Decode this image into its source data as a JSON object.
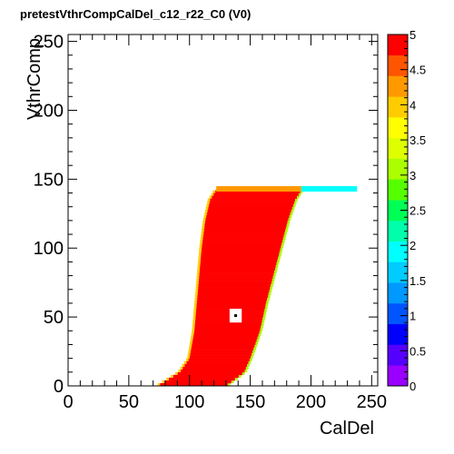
{
  "chart_data": {
    "type": "heatmap",
    "title": "pretestVthrCompCalDel_c12_r22_C0 (V0)",
    "xlabel": "CalDel",
    "ylabel": "VthrComp",
    "xlim": [
      0,
      255
    ],
    "ylim": [
      0,
      255
    ],
    "x_ticks": [
      0,
      50,
      100,
      150,
      200,
      250
    ],
    "y_ticks": [
      0,
      50,
      100,
      150,
      200,
      250
    ],
    "x_tick_labels": [
      "0",
      "50",
      "100",
      "150",
      "200",
      "250"
    ],
    "y_tick_labels": [
      "0",
      "50",
      "100",
      "150",
      "200",
      "250"
    ],
    "z_range": [
      0,
      5
    ],
    "z_ticks": [
      0,
      0.5,
      1,
      1.5,
      2,
      2.5,
      3,
      3.5,
      4,
      4.5,
      5
    ],
    "z_tick_labels": [
      "0",
      "0.5",
      "1",
      "1.5",
      "2",
      "2.5",
      "3",
      "3.5",
      "4",
      "4.5",
      "5"
    ],
    "palette": [
      "#9900ff",
      "#5500ff",
      "#0000ff",
      "#0055ff",
      "#0099ff",
      "#00ccff",
      "#00ffff",
      "#00ffaa",
      "#00ff55",
      "#55ff00",
      "#aaff00",
      "#ddff00",
      "#ffff00",
      "#ffcc00",
      "#ff9900",
      "#ff5500",
      "#ff0000"
    ],
    "grid": false,
    "region": {
      "saturated_value": 5,
      "top_vthr": 142,
      "left_edge": [
        [
          0,
          74
        ],
        [
          10,
          92
        ],
        [
          20,
          100
        ],
        [
          40,
          104
        ],
        [
          60,
          106
        ],
        [
          80,
          108
        ],
        [
          100,
          110
        ],
        [
          120,
          113
        ],
        [
          135,
          117
        ],
        [
          142,
          122
        ]
      ],
      "right_edge": [
        [
          0,
          130
        ],
        [
          10,
          145
        ],
        [
          20,
          150
        ],
        [
          40,
          158
        ],
        [
          60,
          163
        ],
        [
          80,
          169
        ],
        [
          100,
          175
        ],
        [
          120,
          181
        ],
        [
          135,
          187
        ],
        [
          142,
          192
        ]
      ],
      "tail_end_caldel": 238,
      "dead_pixel": {
        "caldel": 138,
        "vthr": 51
      }
    }
  }
}
